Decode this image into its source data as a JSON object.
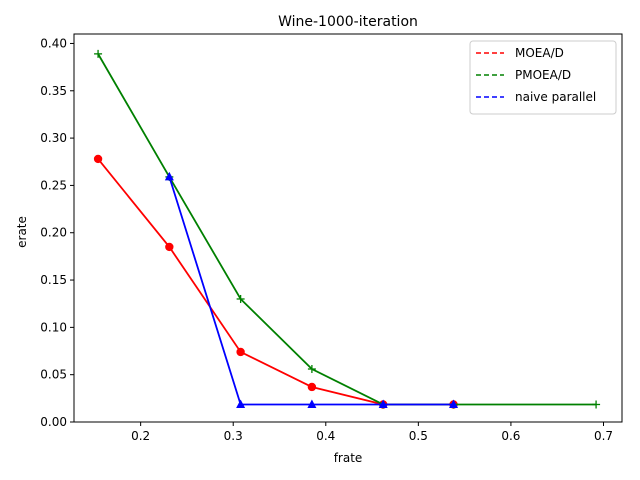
{
  "chart_data": {
    "type": "line",
    "title": "Wine-1000-iteration",
    "xlabel": "frate",
    "ylabel": "erate",
    "xlim": [
      0.128,
      0.72
    ],
    "ylim": [
      0.0,
      0.41
    ],
    "xticks": [
      0.2,
      0.3,
      0.4,
      0.5,
      0.6,
      0.7
    ],
    "xtick_labels": [
      "0.2",
      "0.3",
      "0.4",
      "0.5",
      "0.6",
      "0.7"
    ],
    "yticks": [
      0.0,
      0.05,
      0.1,
      0.15,
      0.2,
      0.25,
      0.3,
      0.35,
      0.4
    ],
    "ytick_labels": [
      "0.00",
      "0.05",
      "0.10",
      "0.15",
      "0.20",
      "0.25",
      "0.30",
      "0.35",
      "0.40"
    ],
    "grid": false,
    "legend_position": "top-right",
    "series": [
      {
        "name": "MOEA/D",
        "color": "#ff0000",
        "marker": "circle",
        "x": [
          0.154,
          0.231,
          0.308,
          0.385,
          0.462,
          0.538
        ],
        "y": [
          0.278,
          0.185,
          0.074,
          0.037,
          0.0185,
          0.0185
        ]
      },
      {
        "name": "PMOEA/D",
        "color": "#008000",
        "marker": "plus",
        "x": [
          0.154,
          0.231,
          0.308,
          0.385,
          0.462,
          0.538,
          0.692
        ],
        "y": [
          0.389,
          0.259,
          0.13,
          0.056,
          0.0185,
          0.0185,
          0.0185
        ]
      },
      {
        "name": "naive parallel",
        "color": "#0000ff",
        "marker": "triangle",
        "x": [
          0.231,
          0.308,
          0.385,
          0.462,
          0.538
        ],
        "y": [
          0.259,
          0.0185,
          0.0185,
          0.0185,
          0.0185
        ]
      }
    ]
  }
}
